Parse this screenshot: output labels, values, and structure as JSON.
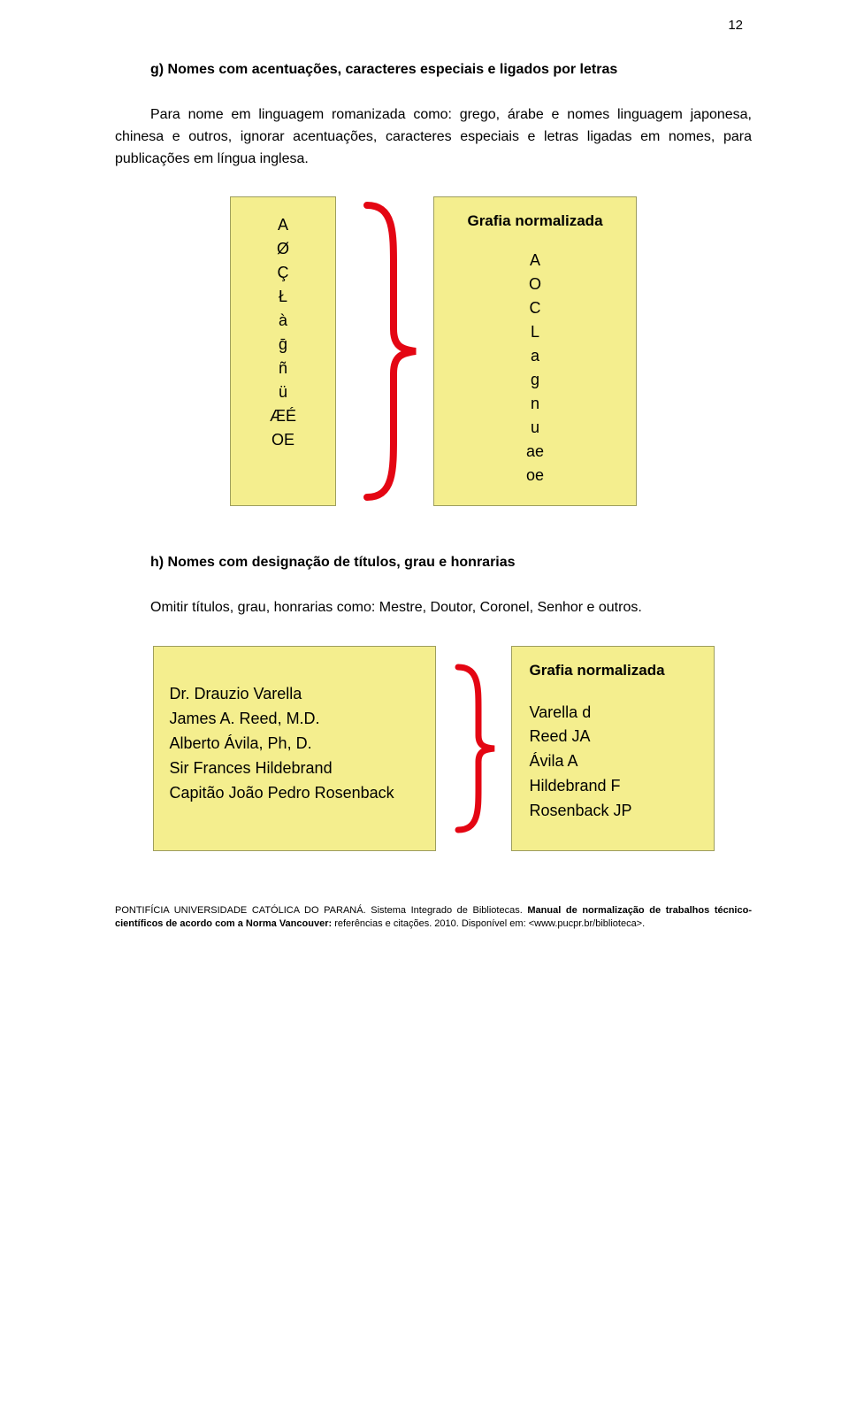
{
  "page_number": "12",
  "section_g": {
    "title": "g) Nomes com acentuações, caracteres especiais e ligados por letras",
    "paragraph": "Para nome em linguagem romanizada como: grego, árabe e nomes linguagem japonesa, chinesa e outros, ignorar acentuações, caracteres especiais e letras ligadas em nomes, para publicações em língua inglesa."
  },
  "diagram1": {
    "left_chars": [
      "A",
      "Ø",
      "Ç",
      "Ł",
      "à",
      "ḡ",
      "ñ",
      "ü",
      "ÆÉ",
      "OE"
    ],
    "right_header": "Grafia normalizada",
    "right_chars": [
      "A",
      "O",
      "C",
      "L",
      "a",
      "g",
      "n",
      "u",
      "ae",
      "oe"
    ],
    "brace_color": "#e40613",
    "box_bg": "#f4ee8e",
    "box_border": "#9e9e5e",
    "brace_height": 350,
    "brace_width": 90
  },
  "section_h": {
    "title": "h) Nomes com designação de títulos, grau e honrarias",
    "paragraph": "Omitir títulos, grau, honrarias como: Mestre, Doutor, Coronel, Senhor e outros."
  },
  "diagram2": {
    "left_names": [
      "Dr. Drauzio Varella",
      "James A. Reed, M.D.",
      "Alberto Ávila, Ph, D.",
      "Sir Frances Hildebrand",
      "Capitão João Pedro Rosenback"
    ],
    "right_header": "Grafia normalizada",
    "right_names": [
      "Varella d",
      "Reed JA",
      "Ávila A",
      "Hildebrand F",
      "Rosenback JP"
    ],
    "brace_color": "#e40613",
    "box_bg": "#f4ee8e",
    "box_border": "#9e9e5e",
    "brace_height": 200,
    "brace_width": 65
  },
  "footer_text": "PONTIFÍCIA UNIVERSIDADE CATÓLICA DO PARANÁ. Sistema Integrado de Bibliotecas. Manual de normalização de trabalhos técnico-científicos de acordo com a Norma Vancouver: referências e citações. 2010. Disponível em: <www.pucpr.br/biblioteca>.",
  "footer_bold_part": "Manual de normalização de trabalhos técnico-científicos de acordo com a Norma Vancouver:"
}
